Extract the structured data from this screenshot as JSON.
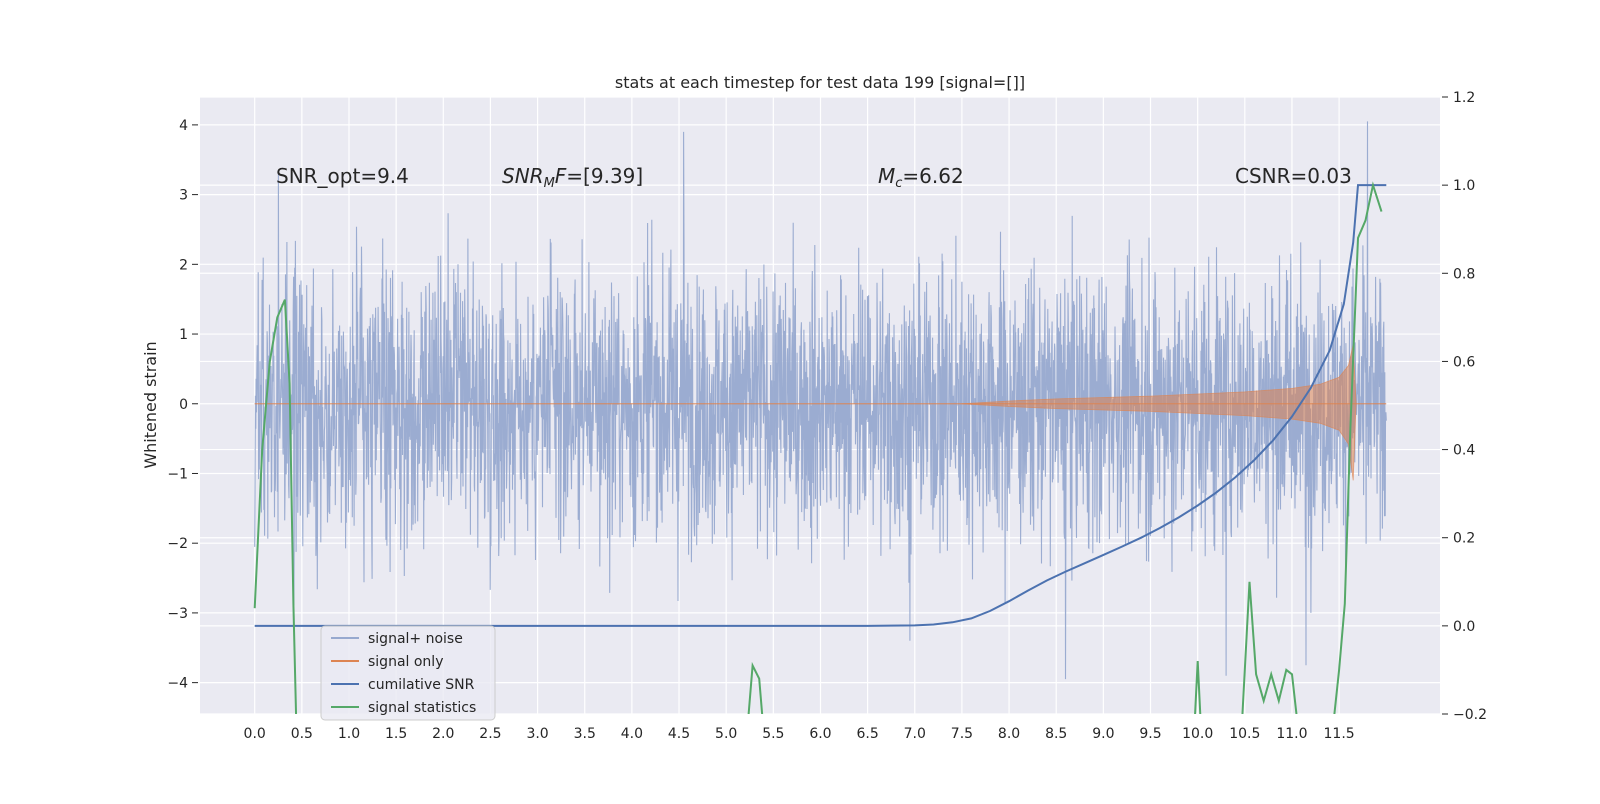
{
  "chart_data": {
    "type": "line",
    "title": "stats at each timestep for test data 199 [signal=[]]",
    "xlabel": "",
    "ylabel": "Whitened strain",
    "y2label": "",
    "xlim": [
      -0.58,
      12.57
    ],
    "ylim": [
      -4.45,
      4.4
    ],
    "y2lim": [
      -0.2,
      1.2
    ],
    "x_ticks": [
      "0.0",
      "0.5",
      "1.0",
      "1.5",
      "2.0",
      "2.5",
      "3.0",
      "3.5",
      "4.0",
      "4.5",
      "5.0",
      "5.5",
      "6.0",
      "6.5",
      "7.0",
      "7.5",
      "8.0",
      "8.5",
      "9.0",
      "9.5",
      "10.0",
      "10.5",
      "11.0",
      "11.5"
    ],
    "y_ticks": [
      "4",
      "3",
      "2",
      "1",
      "0",
      "−1",
      "−2",
      "−3",
      "−4"
    ],
    "y2_ticks": [
      "1.2",
      "1.0",
      "0.8",
      "0.6",
      "0.4",
      "0.2",
      "0.0",
      "−0.2"
    ],
    "grid": true,
    "legend_position": "lower-left",
    "annotations": {
      "snr_opt": "SNR_opt=9.4",
      "snr_mf_italic": "SNR",
      "snr_mf_sub": "M",
      "snr_mf_italic2": "F",
      "snr_mf_rest": "=[9.39]",
      "mc_italic": "M",
      "mc_sub": "c",
      "mc_rest": "=6.62",
      "csnr": "CSNR=0.03"
    },
    "series": [
      {
        "name": "signal+ noise",
        "color": "#97a9cf",
        "axis": "left",
        "style": "dense noise trace",
        "x_range": [
          0.0,
          12.0
        ],
        "amplitude_typical": 1.9,
        "extreme_points": [
          {
            "x": 0.25,
            "y": 3.3
          },
          {
            "x": 4.55,
            "y": 3.9
          },
          {
            "x": 6.95,
            "y": -3.4
          },
          {
            "x": 8.6,
            "y": -3.95
          },
          {
            "x": 10.3,
            "y": -3.9
          },
          {
            "x": 11.8,
            "y": 4.05
          },
          {
            "x": 11.15,
            "y": -3.75
          }
        ]
      },
      {
        "name": "signal only",
        "color": "#dd8452",
        "axis": "left",
        "style": "chirp envelope",
        "envelope": {
          "x": [
            7.5,
            8.0,
            8.5,
            9.0,
            9.5,
            10.0,
            10.5,
            11.0,
            11.3,
            11.5,
            11.6,
            11.65,
            11.68
          ],
          "upper": [
            0.0,
            0.04,
            0.07,
            0.09,
            0.11,
            0.14,
            0.17,
            0.22,
            0.28,
            0.38,
            0.55,
            0.85,
            0.0
          ],
          "lower": [
            0.0,
            -0.04,
            -0.07,
            -0.09,
            -0.11,
            -0.14,
            -0.17,
            -0.22,
            -0.28,
            -0.38,
            -0.58,
            -1.1,
            0.0
          ]
        }
      },
      {
        "name": "cumilative SNR",
        "color": "#4c72b0",
        "axis": "right",
        "x": [
          0.0,
          1.0,
          2.0,
          3.0,
          4.0,
          5.0,
          6.0,
          6.5,
          7.0,
          7.2,
          7.4,
          7.6,
          7.8,
          8.0,
          8.2,
          8.4,
          8.6,
          8.8,
          9.0,
          9.2,
          9.4,
          9.6,
          9.8,
          10.0,
          10.2,
          10.4,
          10.6,
          10.8,
          11.0,
          11.2,
          11.4,
          11.55,
          11.65,
          11.7,
          11.8,
          11.9,
          12.0
        ],
        "y": [
          0.0,
          0.0,
          0.0,
          0.0,
          0.0,
          0.0,
          0.0,
          0.0,
          0.001,
          0.003,
          0.008,
          0.017,
          0.034,
          0.056,
          0.08,
          0.103,
          0.123,
          0.142,
          0.161,
          0.18,
          0.2,
          0.222,
          0.246,
          0.273,
          0.303,
          0.337,
          0.376,
          0.421,
          0.475,
          0.54,
          0.625,
          0.73,
          0.87,
          1.0,
          1.0,
          1.0,
          1.0
        ]
      },
      {
        "name": "signal statistics",
        "color": "#55a868",
        "axis": "right",
        "segments": [
          {
            "x": [
              0.0,
              0.08,
              0.16,
              0.24,
              0.32,
              0.37,
              0.41,
              0.45
            ],
            "y": [
              0.04,
              0.4,
              0.6,
              0.7,
              0.74,
              0.55,
              0.05,
              -0.3
            ]
          },
          {
            "x": [
              5.2,
              5.28,
              5.35,
              5.42
            ],
            "y": [
              -0.3,
              -0.09,
              -0.12,
              -0.3
            ]
          },
          {
            "x": [
              9.95,
              10.0,
              10.05
            ],
            "y": [
              -0.3,
              -0.08,
              -0.3
            ]
          },
          {
            "x": [
              10.45,
              10.55,
              10.62,
              10.7,
              10.78,
              10.86,
              10.94,
              11.0,
              11.1
            ],
            "y": [
              -0.3,
              0.1,
              -0.11,
              -0.17,
              -0.11,
              -0.17,
              -0.1,
              -0.11,
              -0.3
            ]
          },
          {
            "x": [
              11.4,
              11.5,
              11.56,
              11.62,
              11.7,
              11.78,
              11.86,
              11.95
            ],
            "y": [
              -0.3,
              -0.1,
              0.05,
              0.45,
              0.88,
              0.92,
              1.0,
              0.94
            ]
          }
        ]
      }
    ]
  }
}
